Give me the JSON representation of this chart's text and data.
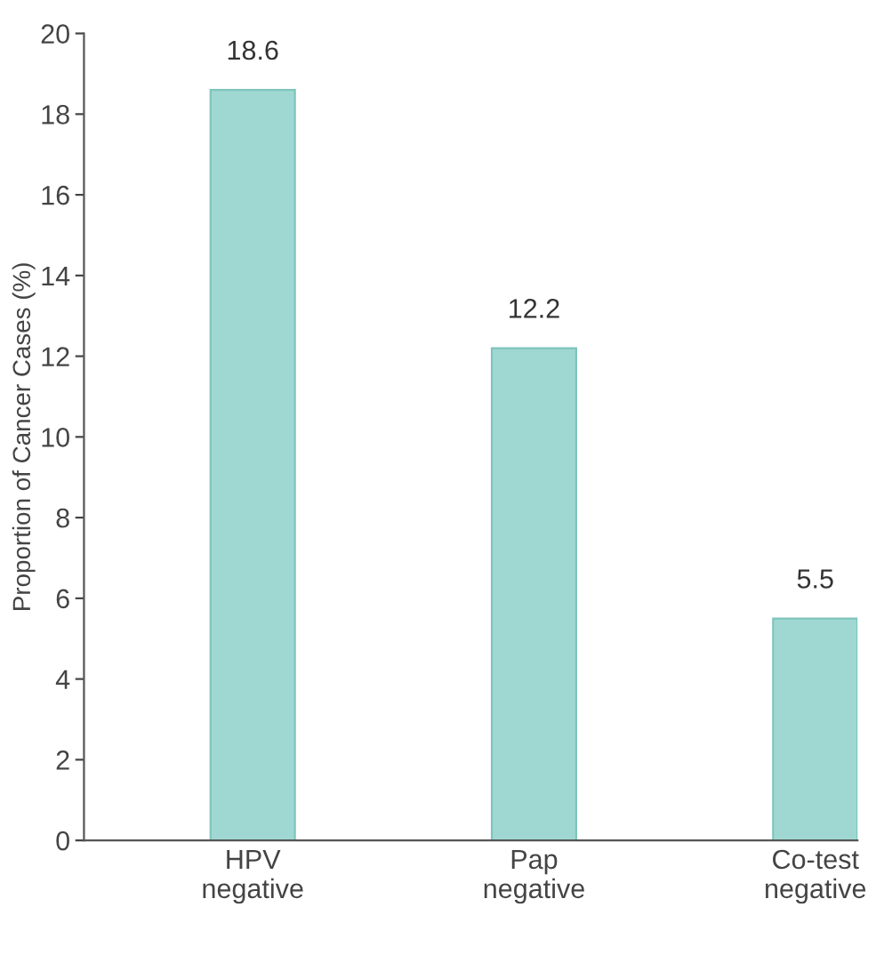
{
  "chart_data": {
    "type": "bar",
    "ylabel": "Proportion of Cancer Cases (%)",
    "categories": [
      "HPV\nnegative",
      "Pap\nnegative",
      "Co-test\nnegative"
    ],
    "values": [
      18.6,
      12.2,
      5.5
    ],
    "color": "#9fd8d2",
    "ylim": [
      0,
      20
    ],
    "yticks": [
      0,
      2,
      4,
      6,
      8,
      10,
      12,
      14,
      16,
      18,
      20
    ],
    "data_labels": true,
    "grid": false
  }
}
